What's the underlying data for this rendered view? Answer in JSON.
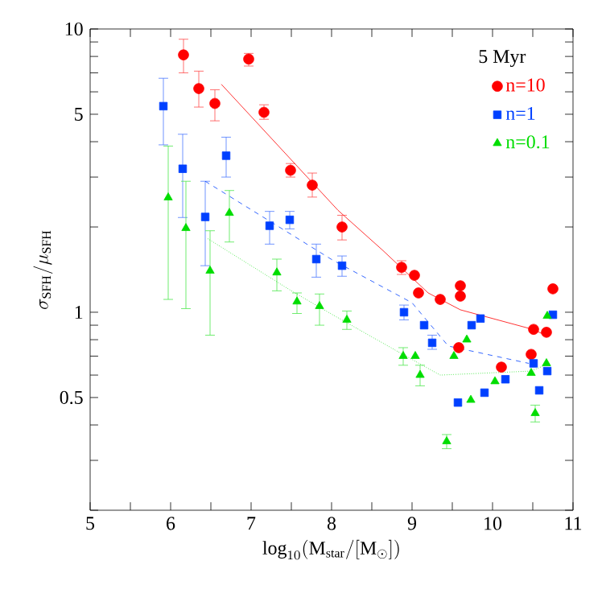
{
  "chart_data": {
    "type": "scatter",
    "xlabel": "\\log_{10}(\\mathrm{M_{star}}/[\\mathrm{M}_\\odot])",
    "ylabel": "\\sigma_{\\mathrm{SFH}}/\\mu_{\\mathrm{SFH}}",
    "legend_title": "5 Myr",
    "legend": "top right",
    "log": "y",
    "xlim": [
      5,
      11
    ],
    "ylim": [
      0.2,
      10
    ],
    "xticks": [
      5,
      {
        "value": 5.5,
        "label": null
      },
      6,
      {
        "value": 6.5,
        "label": null
      },
      7,
      {
        "value": 7.5,
        "label": null
      },
      8,
      {
        "value": 8.5,
        "label": null
      },
      9,
      {
        "value": 9.5,
        "label": null
      },
      10,
      {
        "value": 10.5,
        "label": null
      },
      11
    ],
    "yticks": [
      {
        "value": 0.2,
        "label": null
      },
      {
        "value": 0.3,
        "label": null
      },
      {
        "value": 0.4,
        "label": null
      },
      0.5,
      {
        "value": 0.6,
        "label": null
      },
      {
        "value": 0.7,
        "label": null
      },
      {
        "value": 0.8,
        "label": null
      },
      {
        "value": 0.9,
        "label": null
      },
      1,
      {
        "value": 2,
        "label": null
      },
      {
        "value": 3,
        "label": null
      },
      {
        "value": 4,
        "label": null
      },
      5,
      {
        "value": 6,
        "label": null
      },
      {
        "value": 7,
        "label": null
      },
      {
        "value": 8,
        "label": null
      },
      {
        "value": 9,
        "label": null
      },
      10
    ],
    "series": [
      {
        "name": "n=10",
        "type": "scatter",
        "marker": "circle",
        "color": "#ff0000",
        "x": [
          6.16,
          6.35,
          6.55,
          6.97,
          7.16,
          7.49,
          7.76,
          8.13,
          8.87,
          9.03,
          9.08,
          9.35,
          9.6,
          9.6,
          9.58,
          10.11,
          10.48,
          10.51,
          10.67,
          10.75
        ],
        "values": [
          8.1,
          6.16,
          5.46,
          7.83,
          5.08,
          3.17,
          2.81,
          2.0,
          1.44,
          1.35,
          1.17,
          1.11,
          1.24,
          1.14,
          0.75,
          0.64,
          0.71,
          0.87,
          0.85,
          1.21
        ],
        "errors": [
          [
            7.0,
            9.2
          ],
          [
            5.3,
            7.1
          ],
          [
            4.74,
            6.1
          ],
          [
            7.4,
            8.2
          ],
          [
            4.8,
            5.4
          ],
          [
            3.0,
            3.35
          ],
          [
            2.55,
            3.1
          ],
          [
            1.8,
            2.2
          ],
          [
            1.36,
            1.52
          ],
          null,
          null,
          null,
          null,
          null,
          null,
          null,
          null,
          null,
          null,
          null
        ]
      },
      {
        "name": "n=1",
        "type": "scatter",
        "marker": "square",
        "color": "#0040ff",
        "x": [
          5.91,
          6.15,
          6.43,
          6.69,
          7.23,
          7.48,
          7.81,
          8.13,
          8.9,
          9.15,
          9.25,
          9.74,
          9.85,
          9.57,
          9.9,
          10.16,
          10.51,
          10.68,
          10.58,
          10.75
        ],
        "values": [
          5.34,
          3.21,
          2.17,
          3.57,
          2.02,
          2.12,
          1.54,
          1.46,
          1.0,
          0.9,
          0.78,
          0.9,
          0.95,
          0.48,
          0.52,
          0.58,
          0.66,
          0.62,
          0.53,
          0.98
        ],
        "errors": [
          [
            3.9,
            6.7
          ],
          [
            2.16,
            4.25
          ],
          [
            1.46,
            2.9
          ],
          [
            3.0,
            4.15
          ],
          [
            1.74,
            2.27
          ],
          [
            1.97,
            2.27
          ],
          [
            1.33,
            1.74
          ],
          [
            1.34,
            1.58
          ],
          [
            0.94,
            1.06
          ],
          null,
          [
            0.74,
            0.83
          ],
          null,
          null,
          null,
          null,
          null,
          null,
          null,
          null,
          null
        ]
      },
      {
        "name": "n=0.1",
        "type": "scatter",
        "marker": "triangle",
        "color": "#00dd00",
        "x": [
          5.97,
          6.19,
          6.49,
          6.73,
          7.32,
          7.57,
          7.85,
          8.19,
          8.89,
          9.04,
          9.1,
          9.43,
          9.52,
          9.68,
          9.73,
          10.03,
          10.48,
          10.53,
          10.67,
          10.68
        ],
        "values": [
          2.54,
          1.98,
          1.4,
          2.24,
          1.38,
          1.09,
          1.05,
          0.94,
          0.7,
          0.7,
          0.6,
          0.35,
          0.7,
          0.8,
          0.49,
          0.57,
          0.61,
          0.44,
          0.66,
          0.97
        ],
        "errors": [
          [
            1.11,
            3.86
          ],
          [
            1.03,
            2.9
          ],
          [
            0.83,
            1.94
          ],
          [
            1.77,
            2.69
          ],
          [
            1.19,
            1.54
          ],
          [
            0.99,
            1.17
          ],
          [
            0.9,
            1.16
          ],
          [
            0.87,
            1.01
          ],
          [
            0.65,
            0.75
          ],
          null,
          [
            0.55,
            0.65
          ],
          [
            0.33,
            0.37
          ],
          null,
          null,
          null,
          null,
          null,
          [
            0.41,
            0.47
          ],
          null,
          null
        ]
      },
      {
        "type": "line",
        "line_style": "solid",
        "color": "#ff0000",
        "x": [
          6.63,
          8.08,
          8.63,
          9.2,
          9.6,
          10.5,
          10.7
        ],
        "values": [
          6.38,
          2.29,
          1.66,
          1.17,
          1.02,
          0.87,
          0.82
        ]
      },
      {
        "type": "line",
        "line_style": "dashed",
        "color": "#0040ff",
        "x": [
          6.43,
          8.01,
          9.0,
          9.45,
          10.45
        ],
        "values": [
          2.9,
          1.53,
          1.08,
          0.76,
          0.66
        ]
      },
      {
        "type": "line",
        "line_style": "dotted",
        "color": "#00dd00",
        "x": [
          6.46,
          7.48,
          7.88,
          8.81,
          9.35,
          10.48,
          10.65
        ],
        "values": [
          1.82,
          1.2,
          1.03,
          0.73,
          0.6,
          0.62,
          0.65
        ]
      }
    ]
  }
}
